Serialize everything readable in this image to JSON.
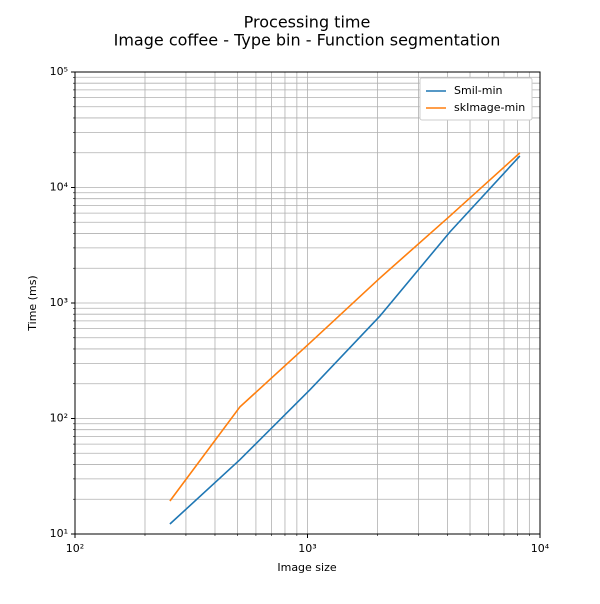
{
  "chart_data": {
    "type": "line",
    "title": "Processing time",
    "subtitle": "Image coffee - Type bin - Function segmentation",
    "xlabel": "Image size",
    "ylabel": "Time (ms)",
    "x": [
      256,
      512,
      1024,
      2048,
      4096,
      8192
    ],
    "series": [
      {
        "name": "Smil-min",
        "color": "#1f77b4",
        "values": [
          12.2,
          44,
          177,
          771,
          4120,
          18750
        ]
      },
      {
        "name": "skImage-min",
        "color": "#ff7f0e",
        "values": [
          19.3,
          126,
          451,
          1645,
          5660,
          19950
        ]
      }
    ],
    "xlim": [
      100,
      10000
    ],
    "ylim": [
      10,
      100000
    ],
    "xticks": [
      {
        "value": 100,
        "label": "10²"
      },
      {
        "value": 1000,
        "label": "10³"
      },
      {
        "value": 10000,
        "label": "10⁴"
      }
    ],
    "yticks": [
      {
        "value": 10,
        "label": "10¹"
      },
      {
        "value": 100,
        "label": "10²"
      },
      {
        "value": 1000,
        "label": "10³"
      },
      {
        "value": 10000,
        "label": "10⁴"
      },
      {
        "value": 100000,
        "label": "10⁵"
      }
    ],
    "xscale": "log",
    "yscale": "log",
    "grid": true,
    "legend": "upper right"
  }
}
